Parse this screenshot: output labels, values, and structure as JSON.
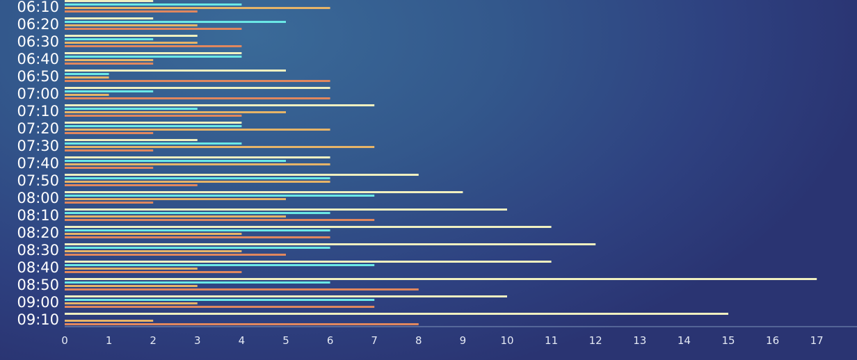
{
  "colors": {
    "series_a": "#f0f0c0",
    "series_b": "#6ae8e6",
    "series_c": "#e6b468",
    "series_d": "#e0875e",
    "axis": "#7f95bb"
  },
  "chart_data": {
    "type": "bar",
    "orientation": "horizontal",
    "title": "",
    "xlabel": "",
    "ylabel": "",
    "xlim": [
      0,
      17.5
    ],
    "xticks": [
      0,
      1,
      2,
      3,
      4,
      5,
      6,
      7,
      8,
      9,
      10,
      11,
      12,
      13,
      14,
      15,
      16,
      17
    ],
    "grid": false,
    "legend": "none",
    "categories": [
      "06:10",
      "06:20",
      "06:30",
      "06:40",
      "06:50",
      "07:00",
      "07:10",
      "07:20",
      "07:30",
      "07:40",
      "07:50",
      "08:00",
      "08:10",
      "08:20",
      "08:30",
      "08:40",
      "08:50",
      "09:00",
      "09:10"
    ],
    "series": [
      {
        "color": "#f0f0c0",
        "values": [
          2,
          2,
          3,
          4,
          5,
          6,
          7,
          4,
          3,
          6,
          8,
          9,
          10,
          11,
          12,
          11,
          17,
          10,
          15
        ]
      },
      {
        "color": "#6ae8e6",
        "values": [
          4,
          5,
          2,
          4,
          1,
          2,
          3,
          4,
          4,
          5,
          6,
          7,
          6,
          6,
          6,
          7,
          6,
          7,
          0
        ]
      },
      {
        "color": "#e6b468",
        "values": [
          6,
          3,
          3,
          2,
          1,
          1,
          5,
          6,
          7,
          6,
          6,
          5,
          5,
          4,
          4,
          3,
          3,
          3,
          2
        ]
      },
      {
        "color": "#e0875e",
        "values": [
          3,
          4,
          4,
          2,
          6,
          6,
          4,
          2,
          2,
          2,
          3,
          2,
          7,
          6,
          5,
          4,
          8,
          7,
          8
        ]
      }
    ]
  }
}
